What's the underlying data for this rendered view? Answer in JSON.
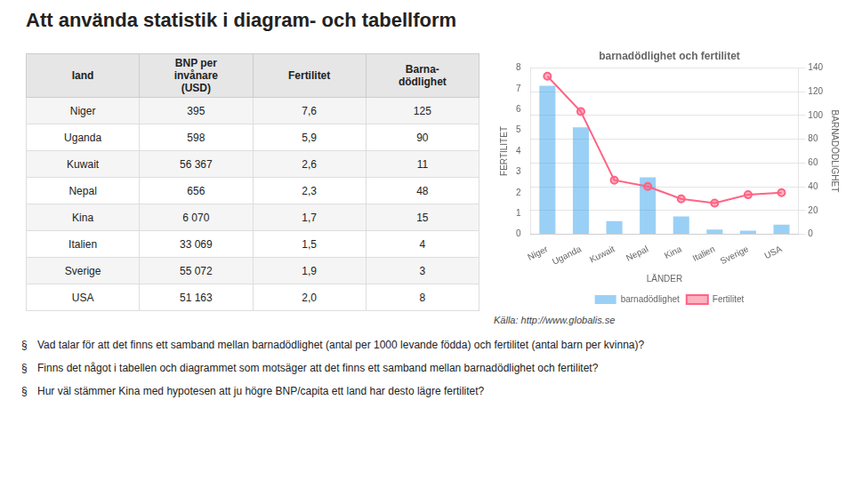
{
  "title": "Att använda statistik i diagram- och tabellform",
  "table": {
    "headers": [
      "land",
      "BNP per\ninvånare\n(USD)",
      "Fertilitet",
      "Barna-\ndödlighet"
    ],
    "rows": [
      [
        "Niger",
        "395",
        "7,6",
        "125"
      ],
      [
        "Uganda",
        "598",
        "5,9",
        "90"
      ],
      [
        "Kuwait",
        "56 367",
        "2,6",
        "11"
      ],
      [
        "Nepal",
        "656",
        "2,3",
        "48"
      ],
      [
        "Kina",
        "6 070",
        "1,7",
        "15"
      ],
      [
        "Italien",
        "33 069",
        "1,5",
        "4"
      ],
      [
        "Sverige",
        "55 072",
        "1,9",
        "3"
      ],
      [
        "USA",
        "51 163",
        "2,0",
        "8"
      ]
    ]
  },
  "chart_data": {
    "type": "bar",
    "title": "barnadödlighet och fertilitet",
    "xlabel": "LÄNDER",
    "ylabel": "BARNADÖDLIGHET",
    "y2label": "FERTILITET",
    "categories": [
      "Niger",
      "Uganda",
      "Kuwait",
      "Nepal",
      "Kina",
      "Italien",
      "Sverige",
      "USA"
    ],
    "series": [
      {
        "name": "barnadödlighet",
        "type": "bar",
        "values": [
          125,
          90,
          11,
          48,
          15,
          4,
          3,
          8
        ]
      },
      {
        "name": "Fertilitet",
        "type": "line",
        "axis": "y2",
        "marker": "circle",
        "values": [
          7.6,
          5.9,
          2.6,
          2.3,
          1.7,
          1.5,
          1.9,
          2.0
        ]
      }
    ],
    "ylim": [
      0,
      140
    ],
    "yticks": [
      0,
      20,
      40,
      60,
      80,
      100,
      120,
      140
    ],
    "y2lim": [
      0,
      8
    ],
    "y2ticks": [
      0,
      1,
      2,
      3,
      4,
      5,
      6,
      7,
      8
    ],
    "grid": true,
    "legend": "bottom"
  },
  "source": "Källa: http://www.globalis.se",
  "bullet_symbol": "§",
  "bullets": [
    "Vad talar för att det finns ett samband mellan barnadödlighet (antal per 1000 levande födda) och fertilitet (antal barn per kvinna)?",
    "Finns det något i tabellen och diagrammet som motsäger att det finns ett samband mellan barnadödlighet och fertilitet?",
    "Hur väl stämmer Kina med hypotesen att ju högre BNP/capita ett land har desto lägre fertilitet?"
  ]
}
